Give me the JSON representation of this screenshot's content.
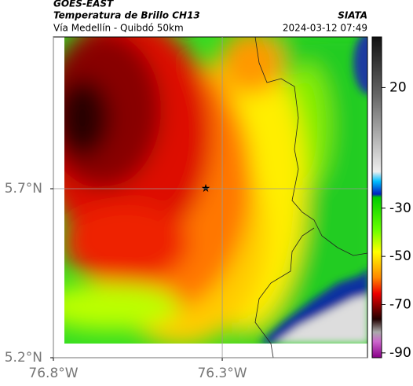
{
  "header": {
    "satellite": "GOES-EAST",
    "product": "Temperatura de Brillo CH13",
    "source": "SIATA",
    "region": "Vía Medellín - Quibdó 50km",
    "timestamp": "2024-03-12 07:49"
  },
  "map": {
    "xlim": [
      -76.8,
      -75.87
    ],
    "ylim": [
      5.2,
      6.149
    ],
    "xticks": [
      {
        "value": -76.8,
        "label": "76.8°W"
      },
      {
        "value": -76.3,
        "label": "76.3°W"
      }
    ],
    "yticks": [
      {
        "value": 5.2,
        "label": "5.2°N"
      },
      {
        "value": 5.7,
        "label": "5.7°N"
      }
    ],
    "grid": true
  },
  "colorbar": {
    "lim": [
      -92,
      41
    ],
    "ticks": [
      20,
      -30,
      -50,
      -70,
      -90
    ]
  }
}
